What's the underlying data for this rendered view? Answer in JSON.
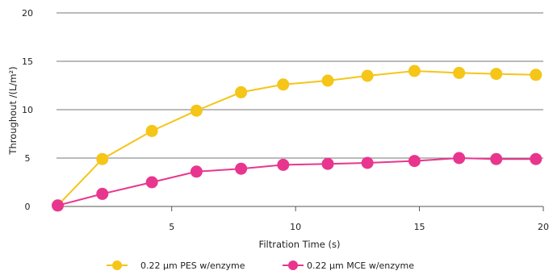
{
  "chart_data": {
    "type": "line",
    "title": "",
    "xlabel": "Filtration Time (s)",
    "ylabel": "Throughout /(L/m²)",
    "xlim": [
      0.35,
      20
    ],
    "ylim": [
      0,
      20
    ],
    "x_ticks": [
      5,
      10,
      15,
      20
    ],
    "y_ticks": [
      0,
      5,
      10,
      15,
      20
    ],
    "grid": "horizontal",
    "legend_position": "bottom",
    "series": [
      {
        "name": "0.22 µm PES w/enzyme",
        "color": "#F5C518",
        "x": [
          0.4,
          2.2,
          4.2,
          6.0,
          7.8,
          9.5,
          11.3,
          12.9,
          14.8,
          16.6,
          18.1,
          19.7
        ],
        "values": [
          0.1,
          4.9,
          7.8,
          9.9,
          11.8,
          12.6,
          13.0,
          13.5,
          14.0,
          13.8,
          13.7,
          13.6
        ]
      },
      {
        "name": "0.22 µm MCE w/enzyme",
        "color": "#E8368F",
        "x": [
          0.4,
          2.2,
          4.2,
          6.0,
          7.8,
          9.5,
          11.3,
          12.9,
          14.8,
          16.6,
          18.1,
          19.7
        ],
        "values": [
          0.1,
          1.3,
          2.5,
          3.6,
          3.9,
          4.3,
          4.4,
          4.5,
          4.7,
          5.0,
          4.9,
          4.9
        ]
      }
    ]
  }
}
